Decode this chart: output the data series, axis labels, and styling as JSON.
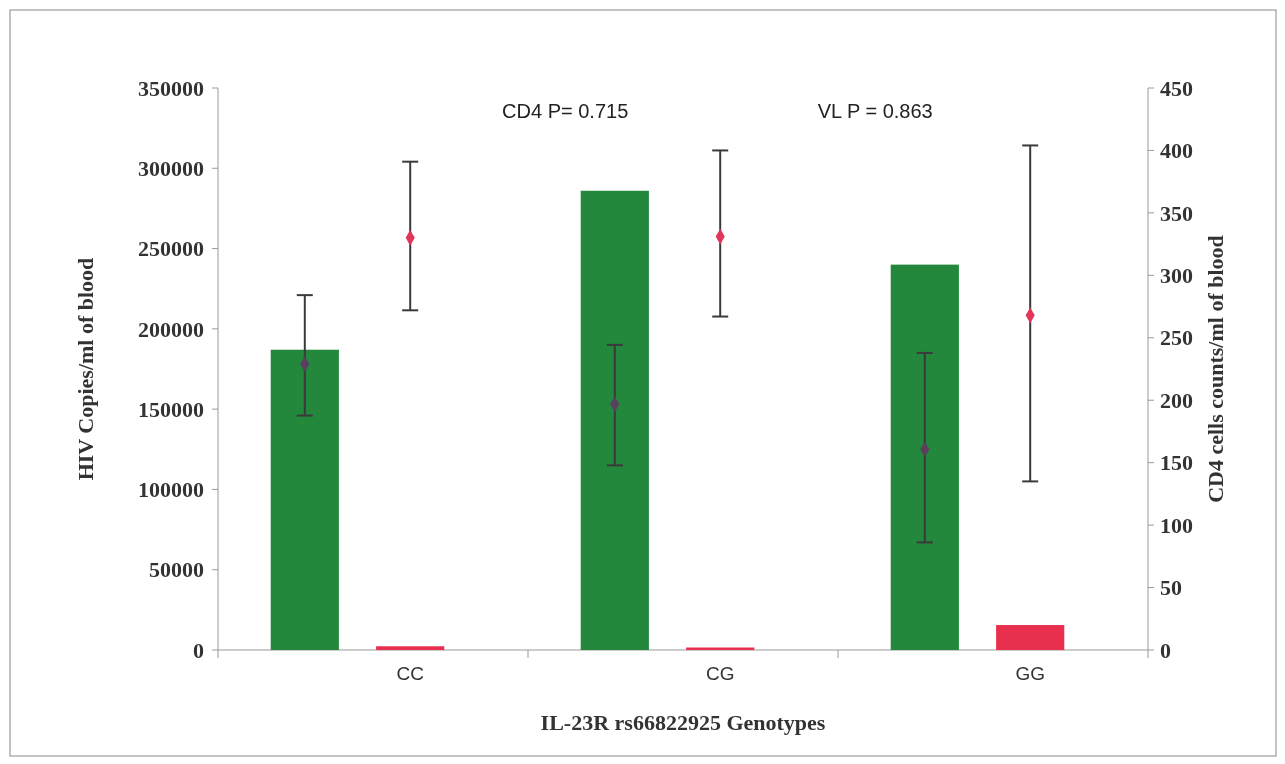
{
  "chart_data": {
    "type": "bar",
    "xlabel": "IL-23R rs66822925 Genotypes",
    "ylabel": "HIV Copies/ml of blood",
    "y2label": "CD4 cells counts/ml of blood",
    "categories": [
      "CC",
      "CG",
      "GG"
    ],
    "ylim": [
      0,
      350000
    ],
    "yticks": [
      0,
      50000,
      100000,
      150000,
      200000,
      250000,
      300000,
      350000
    ],
    "y2lim": [
      0,
      450
    ],
    "y2ticks": [
      0,
      50,
      100,
      150,
      200,
      250,
      300,
      350,
      400,
      450
    ],
    "marker": "diamond",
    "annotations": [
      "CD4 P= 0.715",
      "VL P = 0.863"
    ],
    "series": [
      {
        "color": "#23873c",
        "values": [
          187000,
          286000,
          240000
        ]
      },
      {
        "type": "bar",
        "axis": "y2",
        "color": "#e8304e",
        "values": [
          3,
          2,
          20
        ]
      },
      {
        "type": "scatter",
        "color": "#5b3f5e",
        "x": [
          "CC",
          "CG",
          "GG"
        ],
        "values": [
          178000,
          153000,
          125000
        ],
        "errors": [
          [
            146000,
            221000
          ],
          [
            115000,
            190000
          ],
          [
            67000,
            185000
          ]
        ]
      },
      {
        "type": "scatter",
        "axis": "y2",
        "color": "#e0365a",
        "x": [
          "CC",
          "CG",
          "GG"
        ],
        "values": [
          330,
          331,
          268
        ],
        "errors": [
          [
            272,
            391
          ],
          [
            267,
            400
          ],
          [
            135,
            404
          ]
        ]
      }
    ]
  }
}
